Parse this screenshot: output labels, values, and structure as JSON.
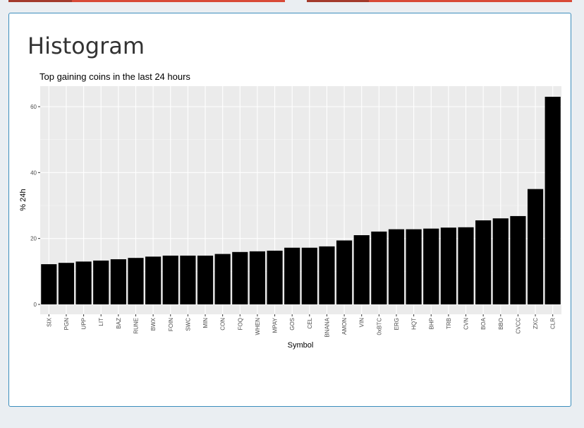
{
  "page": {
    "title": "Histogram"
  },
  "chart_data": {
    "type": "bar",
    "title": "Top gaining coins in the last 24 hours",
    "xlabel": "Symbol",
    "ylabel": "% 24h",
    "categories": [
      "SIX",
      "PGN",
      "UPP",
      "LIT",
      "BAZ",
      "RUNE",
      "BWX",
      "FOIN",
      "SWC",
      "MIN",
      "CON",
      "FOQ",
      "WHEN",
      "MPAY",
      "GOS",
      "CEL",
      "BNANA",
      "AMON",
      "VIN",
      "0xBTC",
      "ERG",
      "HQT",
      "BHP",
      "TRB",
      "CVN",
      "BOA",
      "BBO",
      "CVCC",
      "ZXC",
      "CLR"
    ],
    "values": [
      12.2,
      12.6,
      13.0,
      13.3,
      13.7,
      14.1,
      14.5,
      14.8,
      14.8,
      14.8,
      15.3,
      15.9,
      16.1,
      16.3,
      17.2,
      17.2,
      17.6,
      19.4,
      21.0,
      22.1,
      22.8,
      22.8,
      23.0,
      23.3,
      23.4,
      25.5,
      26.1,
      26.8,
      35.0,
      63.0
    ],
    "yticks": [
      0,
      20,
      40,
      60
    ],
    "ylim": [
      -2.5,
      66.2
    ],
    "grid": true,
    "legend": "none",
    "colors": {
      "bar": "#000000",
      "panel_background": "#ebebeb",
      "grid_major": "#ffffff",
      "grid_minor": "#f5f5f5",
      "accent_border": "#3c8dbc",
      "top_tab": "#d84a38"
    }
  }
}
